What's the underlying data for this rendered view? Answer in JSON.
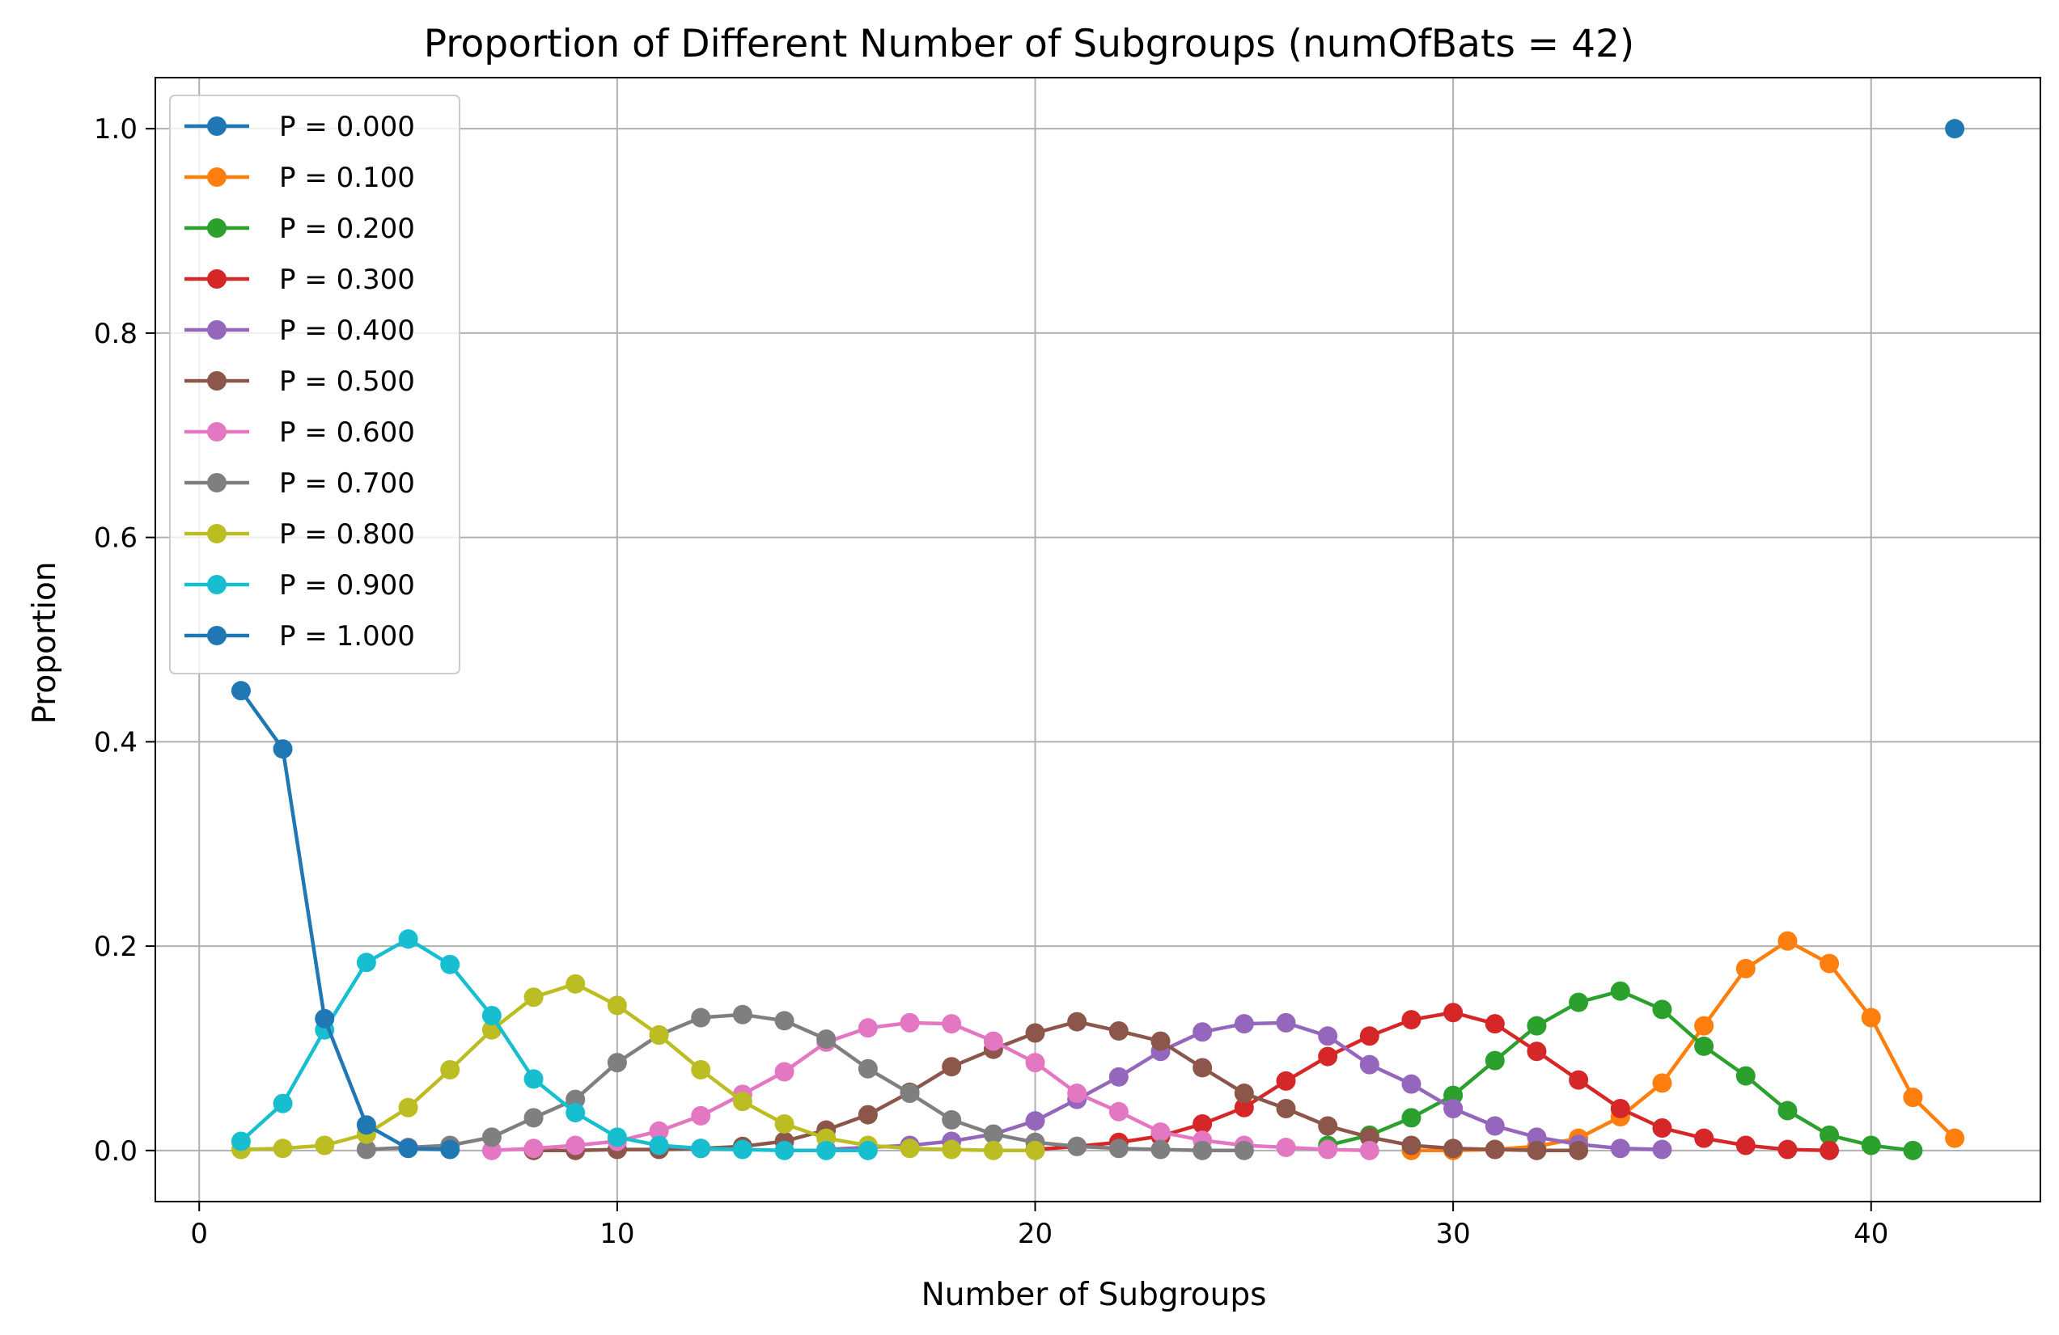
{
  "chart_data": {
    "type": "line",
    "title": "Proportion of Different Number of Subgroups (numOfBats = 42)",
    "xlabel": "Number of Subgroups",
    "ylabel": "Proportion",
    "xlim": [
      -1.05,
      44.05
    ],
    "ylim": [
      -0.05,
      1.05
    ],
    "xticks": [
      0,
      10,
      20,
      30,
      40
    ],
    "yticks": [
      0.0,
      0.2,
      0.4,
      0.6,
      0.8,
      1.0
    ],
    "xtick_labels": [
      "0",
      "10",
      "20",
      "30",
      "40"
    ],
    "ytick_labels": [
      "0.0",
      "0.2",
      "0.4",
      "0.6",
      "0.8",
      "1.0"
    ],
    "grid": true,
    "legend_position": "upper-left",
    "series": [
      {
        "name": "P = 0.000",
        "color": "#1f77b4",
        "x": [
          42
        ],
        "y": [
          1.0
        ]
      },
      {
        "name": "P = 0.100",
        "color": "#ff7f0e",
        "x": [
          29,
          30,
          31,
          32,
          33,
          34,
          35,
          36,
          37,
          38,
          39,
          40,
          41,
          42
        ],
        "y": [
          0.0,
          0.0,
          0.001,
          0.004,
          0.012,
          0.033,
          0.066,
          0.122,
          0.178,
          0.205,
          0.183,
          0.13,
          0.052,
          0.012
        ]
      },
      {
        "name": "P = 0.200",
        "color": "#2ca02c",
        "x": [
          27,
          28,
          29,
          30,
          31,
          32,
          33,
          34,
          35,
          36,
          37,
          38,
          39,
          40,
          41
        ],
        "y": [
          0.005,
          0.015,
          0.032,
          0.054,
          0.088,
          0.122,
          0.145,
          0.156,
          0.138,
          0.102,
          0.073,
          0.039,
          0.015,
          0.005,
          0.0
        ]
      },
      {
        "name": "P = 0.300",
        "color": "#d62728",
        "x": [
          20,
          21,
          22,
          23,
          24,
          25,
          26,
          27,
          28,
          29,
          30,
          31,
          32,
          33,
          34,
          35,
          36,
          37,
          38,
          39
        ],
        "y": [
          0.001,
          0.004,
          0.008,
          0.014,
          0.026,
          0.042,
          0.068,
          0.092,
          0.112,
          0.128,
          0.135,
          0.124,
          0.097,
          0.069,
          0.041,
          0.022,
          0.012,
          0.005,
          0.001,
          0.0
        ]
      },
      {
        "name": "P = 0.400",
        "color": "#9467bd",
        "x": [
          15,
          16,
          17,
          18,
          19,
          20,
          21,
          22,
          23,
          24,
          25,
          26,
          27,
          28,
          29,
          30,
          31,
          32,
          33,
          34,
          35
        ],
        "y": [
          0.001,
          0.003,
          0.005,
          0.009,
          0.016,
          0.029,
          0.05,
          0.072,
          0.097,
          0.116,
          0.124,
          0.125,
          0.112,
          0.084,
          0.065,
          0.041,
          0.024,
          0.013,
          0.006,
          0.002,
          0.001
        ]
      },
      {
        "name": "P = 0.500",
        "color": "#8c564b",
        "x": [
          8,
          9,
          10,
          11,
          12,
          13,
          14,
          15,
          16,
          17,
          18,
          19,
          20,
          21,
          22,
          23,
          24,
          25,
          26,
          27,
          28,
          29,
          30,
          31,
          32,
          33
        ],
        "y": [
          0.0,
          0.0,
          0.001,
          0.001,
          0.002,
          0.004,
          0.009,
          0.02,
          0.035,
          0.057,
          0.082,
          0.099,
          0.115,
          0.126,
          0.117,
          0.107,
          0.081,
          0.056,
          0.041,
          0.024,
          0.013,
          0.005,
          0.002,
          0.001,
          0.0,
          0.0
        ]
      },
      {
        "name": "P = 0.600",
        "color": "#e377c2",
        "x": [
          7,
          8,
          9,
          10,
          11,
          12,
          13,
          14,
          15,
          16,
          17,
          18,
          19,
          20,
          21,
          22,
          23,
          24,
          25,
          26,
          27,
          28
        ],
        "y": [
          0.0,
          0.002,
          0.005,
          0.009,
          0.019,
          0.034,
          0.055,
          0.077,
          0.106,
          0.12,
          0.125,
          0.124,
          0.107,
          0.086,
          0.056,
          0.038,
          0.018,
          0.01,
          0.005,
          0.003,
          0.001,
          0.0
        ]
      },
      {
        "name": "P = 0.700",
        "color": "#7f7f7f",
        "x": [
          4,
          5,
          6,
          7,
          8,
          9,
          10,
          11,
          12,
          13,
          14,
          15,
          16,
          17,
          18,
          19,
          20,
          21,
          22,
          23,
          24,
          25
        ],
        "y": [
          0.001,
          0.003,
          0.005,
          0.013,
          0.032,
          0.05,
          0.086,
          0.113,
          0.13,
          0.133,
          0.127,
          0.109,
          0.08,
          0.056,
          0.03,
          0.016,
          0.008,
          0.004,
          0.002,
          0.001,
          0.0,
          0.0
        ]
      },
      {
        "name": "P = 0.800",
        "color": "#bcbd22",
        "x": [
          1,
          2,
          3,
          4,
          5,
          6,
          7,
          8,
          9,
          10,
          11,
          12,
          13,
          14,
          15,
          16,
          17,
          18,
          19,
          20
        ],
        "y": [
          0.001,
          0.002,
          0.005,
          0.016,
          0.042,
          0.079,
          0.118,
          0.15,
          0.163,
          0.142,
          0.113,
          0.079,
          0.048,
          0.026,
          0.012,
          0.005,
          0.002,
          0.001,
          0.0,
          0.0
        ]
      },
      {
        "name": "P = 0.900",
        "color": "#17becf",
        "x": [
          1,
          2,
          3,
          4,
          5,
          6,
          7,
          8,
          9,
          10,
          11,
          12,
          13,
          14,
          15,
          16
        ],
        "y": [
          0.009,
          0.046,
          0.118,
          0.184,
          0.207,
          0.182,
          0.132,
          0.07,
          0.037,
          0.013,
          0.005,
          0.002,
          0.001,
          0.0,
          0.0,
          0.0
        ]
      },
      {
        "name": "P = 1.000",
        "color": "#1f77b4",
        "x": [
          1,
          2,
          3,
          4,
          5,
          6
        ],
        "y": [
          0.45,
          0.393,
          0.129,
          0.025,
          0.002,
          0.001
        ]
      }
    ]
  }
}
